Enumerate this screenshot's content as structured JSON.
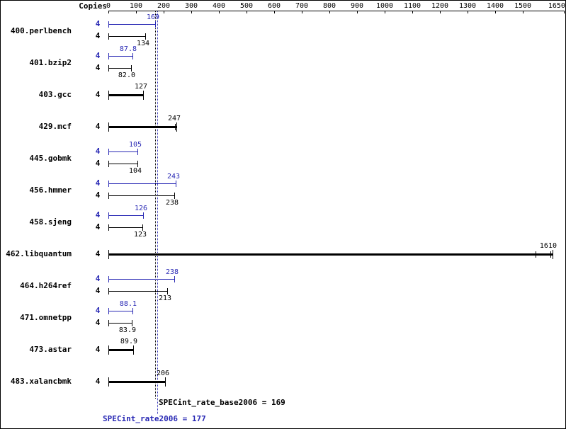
{
  "colors": {
    "base": "#000000",
    "peak": "#2828b4"
  },
  "chart_data": {
    "type": "bar",
    "orientation": "horizontal",
    "copies_header": "Copies",
    "x_axis": {
      "min": 0,
      "max": 1650,
      "ticks": [
        0,
        100,
        200,
        300,
        400,
        500,
        600,
        700,
        800,
        900,
        1000,
        1100,
        1200,
        1300,
        1400,
        1500,
        1650
      ]
    },
    "benchmarks": [
      {
        "name": "400.perlbench",
        "copies": "4",
        "peak": {
          "value": 169,
          "label": "169"
        },
        "base": {
          "value": 134,
          "label": "134"
        }
      },
      {
        "name": "401.bzip2",
        "copies": "4",
        "peak": {
          "value": 87.8,
          "label": "87.8"
        },
        "base": {
          "value": 82.0,
          "label": "82.0"
        }
      },
      {
        "name": "403.gcc",
        "copies": "4",
        "single": {
          "value": 127,
          "label": "127"
        }
      },
      {
        "name": "429.mcf",
        "copies": "4",
        "single": {
          "value": 247,
          "label": "247",
          "marks": [
            242
          ]
        }
      },
      {
        "name": "445.gobmk",
        "copies": "4",
        "peak": {
          "value": 105,
          "label": "105"
        },
        "base": {
          "value": 104,
          "label": "104"
        }
      },
      {
        "name": "456.hmmer",
        "copies": "4",
        "peak": {
          "value": 243,
          "label": "243"
        },
        "base": {
          "value": 238,
          "label": "238"
        }
      },
      {
        "name": "458.sjeng",
        "copies": "4",
        "peak": {
          "value": 126,
          "label": "126"
        },
        "base": {
          "value": 123,
          "label": "123"
        }
      },
      {
        "name": "462.libquantum",
        "copies": "4",
        "single": {
          "value": 1610,
          "label": "1610",
          "marks": [
            1547,
            1600
          ]
        }
      },
      {
        "name": "464.h264ref",
        "copies": "4",
        "peak": {
          "value": 238,
          "label": "238"
        },
        "base": {
          "value": 213,
          "label": "213"
        }
      },
      {
        "name": "471.omnetpp",
        "copies": "4",
        "peak": {
          "value": 88.1,
          "label": "88.1"
        },
        "base": {
          "value": 83.9,
          "label": "83.9"
        }
      },
      {
        "name": "473.astar",
        "copies": "4",
        "single": {
          "value": 89.9,
          "label": "89.9"
        }
      },
      {
        "name": "483.xalancbmk",
        "copies": "4",
        "single": {
          "value": 206,
          "label": "206"
        }
      }
    ],
    "reference_lines": [
      {
        "value": 169,
        "color_key": "base"
      },
      {
        "value": 177,
        "color_key": "peak"
      }
    ],
    "summary": {
      "base_text": "SPECint_rate_base2006 = 169",
      "peak_text": "SPECint_rate2006 = 177",
      "base_value": 169,
      "peak_value": 177
    }
  }
}
